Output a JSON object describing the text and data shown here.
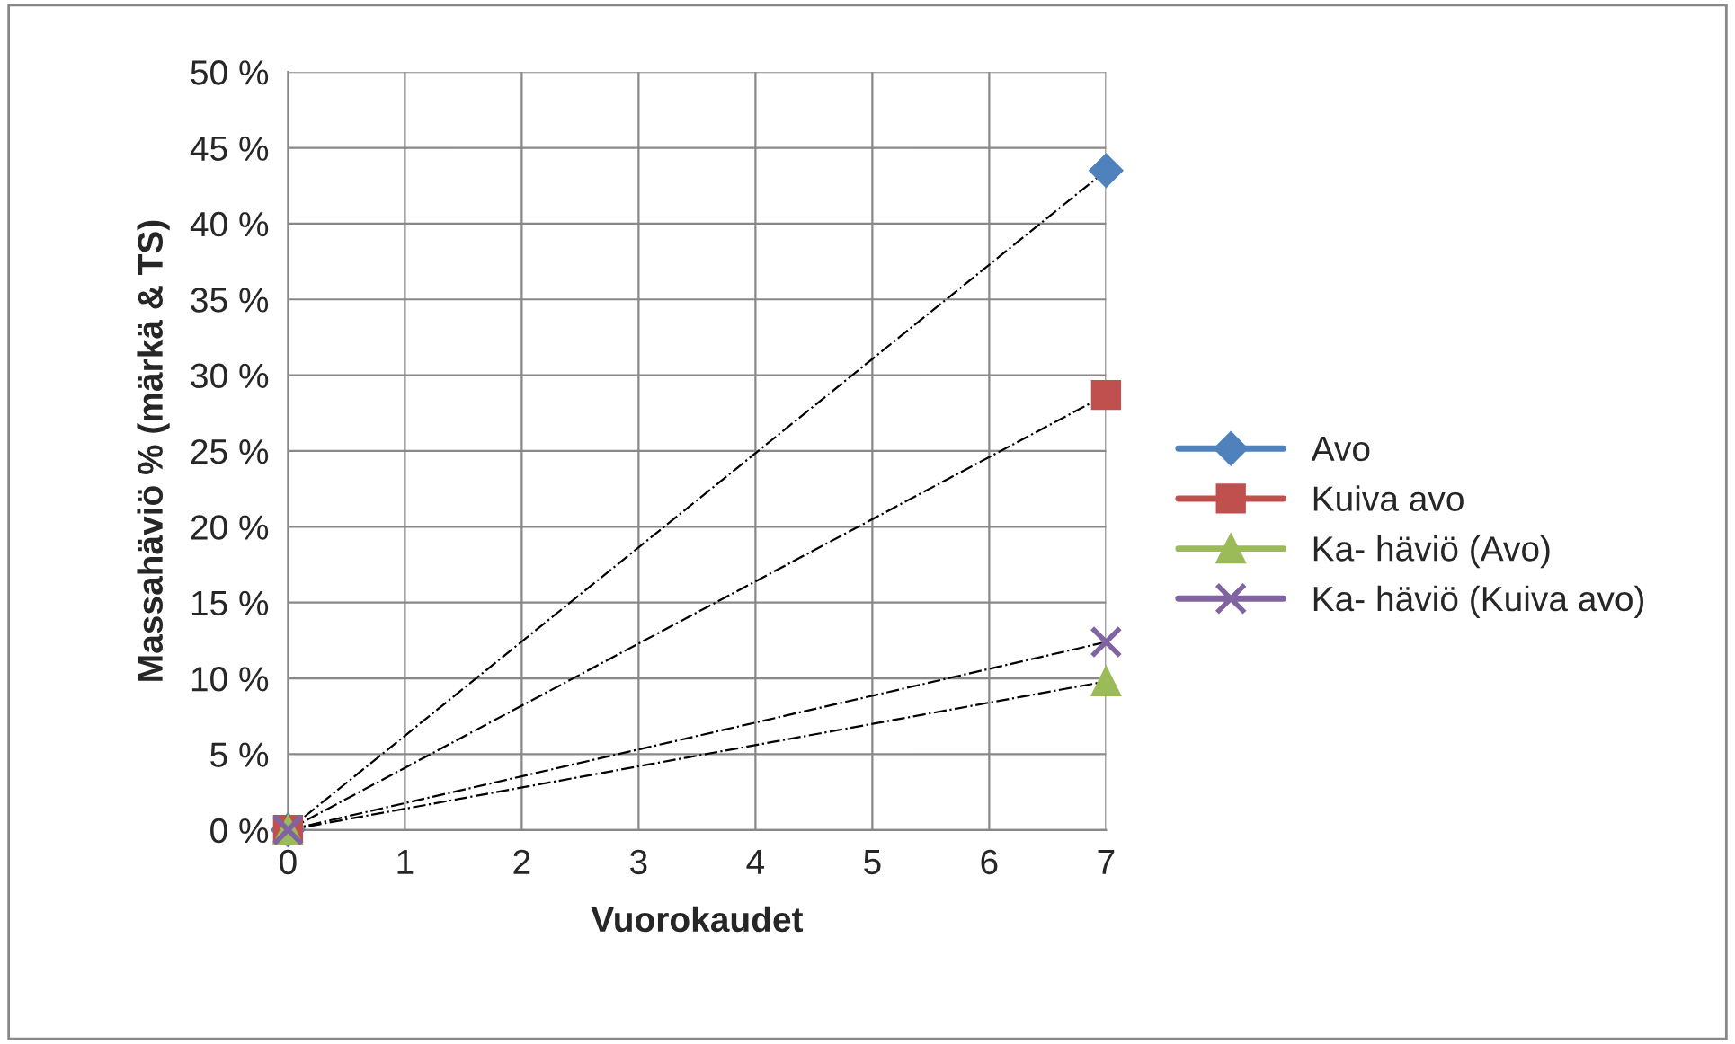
{
  "chart_data": {
    "type": "scatter",
    "xlabel": "Vuorokaudet",
    "ylabel": "Massahäviö % (märkä & TS)",
    "x": [
      0,
      7
    ],
    "xlim": [
      0,
      7
    ],
    "xticks": [
      0,
      1,
      2,
      3,
      4,
      5,
      6,
      7
    ],
    "ylim": [
      0,
      50
    ],
    "yticks": [
      {
        "value": 0,
        "label": "0 %"
      },
      {
        "value": 5,
        "label": "5 %"
      },
      {
        "value": 10,
        "label": "10 %"
      },
      {
        "value": 15,
        "label": "15 %"
      },
      {
        "value": 20,
        "label": "20 %"
      },
      {
        "value": 25,
        "label": "25 %"
      },
      {
        "value": 30,
        "label": "30 %"
      },
      {
        "value": 35,
        "label": "35 %"
      },
      {
        "value": 40,
        "label": "40 %"
      },
      {
        "value": 45,
        "label": "45 %"
      },
      {
        "value": 50,
        "label": "50 %"
      }
    ],
    "grid": true,
    "legend": "right",
    "series": [
      {
        "name": "Avo",
        "color": "#4f81bd",
        "marker": "diamond",
        "values": [
          0,
          43.5
        ]
      },
      {
        "name": "Kuiva avo",
        "color": "#c0504d",
        "marker": "square",
        "values": [
          0,
          28.7
        ]
      },
      {
        "name": "Ka- häviö (Avo)",
        "color": "#9bbb59",
        "marker": "triangle",
        "values": [
          0,
          9.8
        ]
      },
      {
        "name": "Ka- häviö (Kuiva avo)",
        "color": "#8064a2",
        "marker": "cross",
        "values": [
          0,
          12.4
        ]
      },
      {
        "type": "line",
        "color": "#000000",
        "line_style": "dashed",
        "marker": "none",
        "values": [
          0,
          43.5
        ]
      },
      {
        "type": "line",
        "color": "#000000",
        "line_style": "dashed",
        "marker": "none",
        "values": [
          0,
          28.7
        ]
      },
      {
        "type": "line",
        "color": "#000000",
        "line_style": "dashed",
        "marker": "none",
        "values": [
          0,
          9.8
        ]
      },
      {
        "type": "line",
        "color": "#000000",
        "line_style": "dashed",
        "marker": "none",
        "values": [
          0,
          12.4
        ]
      }
    ]
  }
}
